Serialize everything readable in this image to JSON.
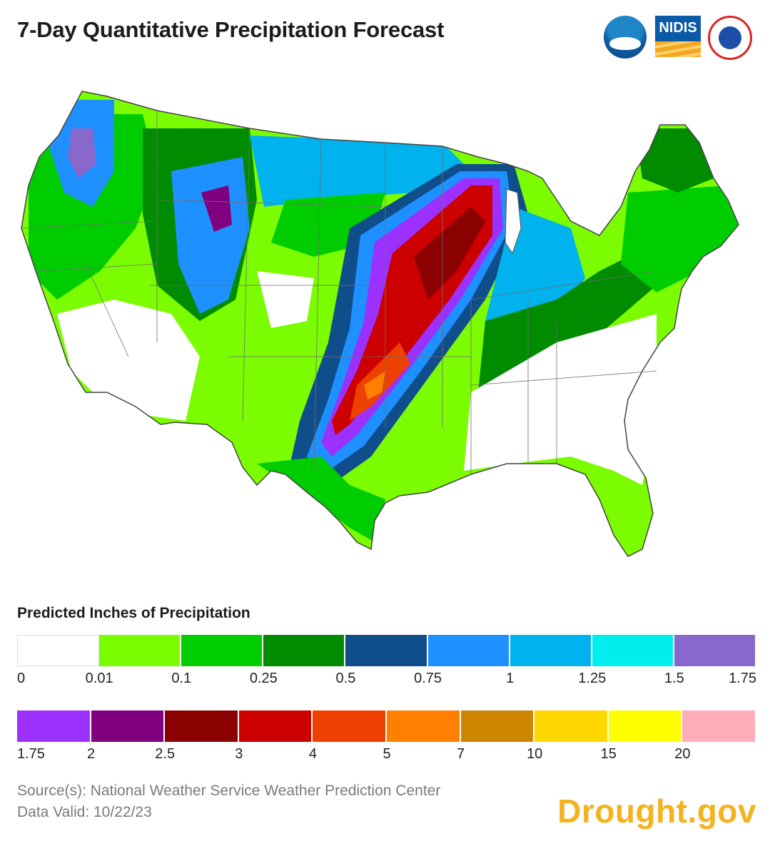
{
  "title": "7-Day Quantitative Precipitation Forecast",
  "logos": {
    "noaa": "NOAA",
    "nidis": "NIDIS",
    "nws": "National Weather Service"
  },
  "legend": {
    "title": "Predicted Inches of Precipitation",
    "row1": {
      "colors": [
        "#ffffff",
        "#7cfc00",
        "#00cd00",
        "#008b00",
        "#104e8b",
        "#1e90ff",
        "#00b2ee",
        "#00eeee",
        "#8968cd"
      ],
      "labels": [
        "0",
        "0.01",
        "0.1",
        "0.25",
        "0.5",
        "0.75",
        "1",
        "1.25",
        "1.5",
        "1.75"
      ]
    },
    "row2": {
      "colors": [
        "#9b30ff",
        "#800080",
        "#8b0000",
        "#cd0000",
        "#ee4000",
        "#ff7f00",
        "#cd8500",
        "#ffd700",
        "#ffff00",
        "#ffaeb9"
      ],
      "labels": [
        "1.75",
        "2",
        "2.5",
        "3",
        "4",
        "5",
        "7",
        "10",
        "15",
        "20"
      ]
    }
  },
  "source": "Source(s): National Weather Service Weather Prediction Center",
  "valid": "Data Valid: 10/22/23",
  "brand": "Drought.gov",
  "map_colors": {
    "light_green": "#7cfc00",
    "green": "#00cd00",
    "dark_green": "#008b00",
    "navy": "#104e8b",
    "blue": "#1e90ff",
    "sky": "#00b2ee",
    "lavender": "#8968cd",
    "purple": "#9b30ff",
    "dark_purple": "#800080",
    "dark_red": "#8b0000",
    "red": "#cd0000",
    "orange_red": "#ee4000",
    "orange": "#ff7f00",
    "state_line": "#6e6e6e"
  }
}
